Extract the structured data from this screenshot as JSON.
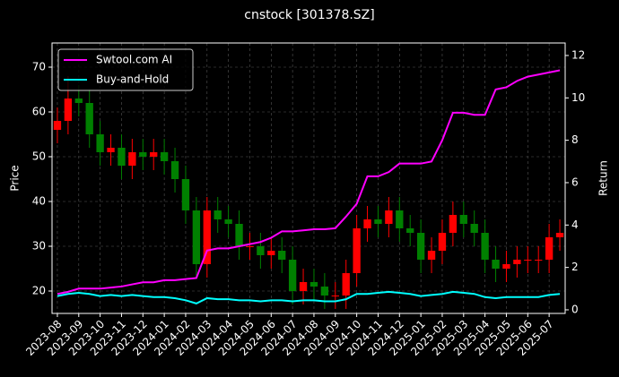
{
  "chart_data": {
    "type": "candlestick",
    "title": "cnstock [301378.SZ]",
    "ylabel": "Price",
    "y2label": "Return",
    "categories": [
      "2023-08",
      null,
      "2023-09",
      null,
      "2023-10",
      null,
      "2023-11",
      null,
      "2023-12",
      null,
      "2024-01",
      null,
      "2024-02",
      null,
      "2024-03",
      null,
      "2024-04",
      null,
      "2024-05",
      null,
      "2024-06",
      null,
      "2024-07",
      null,
      "2024-08",
      null,
      "2024-09",
      null,
      "2024-10",
      null,
      "2024-11",
      null,
      "2024-12",
      null,
      "2025-01",
      null,
      "2025-02",
      null,
      "2025-03",
      null,
      "2025-04",
      null,
      "2025-05",
      null,
      "2025-06",
      null,
      "2025-07",
      null
    ],
    "open": [
      56,
      58,
      63,
      62,
      55,
      51,
      52,
      48,
      51,
      50,
      51,
      49,
      45,
      38,
      26,
      38,
      36,
      35,
      30,
      30,
      28,
      29,
      27,
      20,
      22,
      21,
      19,
      19,
      24,
      34,
      36,
      35,
      38,
      34,
      33,
      27,
      29,
      33,
      37,
      35,
      33,
      27,
      25,
      26,
      27,
      27,
      27,
      32
    ],
    "high": [
      61,
      68,
      66,
      65,
      58,
      55,
      55,
      54,
      54,
      54,
      54,
      52,
      48,
      41,
      41,
      41,
      39,
      38,
      33,
      33,
      32,
      32,
      30,
      25,
      25,
      24,
      22,
      27,
      37,
      39,
      39,
      41,
      41,
      37,
      36,
      32,
      36,
      40,
      40,
      38,
      36,
      30,
      29,
      30,
      30,
      30,
      35,
      36
    ],
    "low": [
      53,
      55,
      59,
      52,
      48,
      48,
      45,
      45,
      47,
      47,
      46,
      42,
      35,
      23,
      23,
      33,
      32,
      27,
      27,
      25,
      25,
      24,
      17,
      17,
      18,
      16,
      16,
      16,
      21,
      31,
      32,
      32,
      31,
      30,
      24,
      24,
      26,
      30,
      32,
      30,
      24,
      22,
      22,
      23,
      24,
      24,
      24,
      29
    ],
    "close": [
      58,
      63,
      62,
      55,
      51,
      52,
      48,
      51,
      50,
      51,
      49,
      45,
      38,
      26,
      38,
      36,
      35,
      30,
      30,
      28,
      29,
      27,
      20,
      22,
      21,
      19,
      19,
      24,
      34,
      36,
      35,
      38,
      34,
      33,
      27,
      29,
      33,
      37,
      35,
      33,
      27,
      25,
      26,
      27,
      27,
      27,
      32,
      33
    ],
    "up_color": "#ff0000",
    "down_color": "#008000",
    "series": [
      {
        "name": "Swtool.com AI",
        "color": "#ff00ff",
        "axis": "y2",
        "values": [
          0.75,
          0.85,
          1.0,
          1.0,
          1.0,
          1.05,
          1.1,
          1.2,
          1.3,
          1.3,
          1.4,
          1.4,
          1.45,
          1.5,
          2.8,
          2.9,
          2.9,
          3.0,
          3.1,
          3.2,
          3.4,
          3.7,
          3.7,
          3.75,
          3.8,
          3.8,
          3.85,
          4.4,
          5.0,
          6.3,
          6.3,
          6.5,
          6.9,
          6.9,
          6.9,
          7.0,
          8.0,
          9.3,
          9.3,
          9.2,
          9.2,
          10.4,
          10.5,
          10.8,
          11.0,
          11.1,
          11.2,
          11.3
        ]
      },
      {
        "name": "Buy-and-Hold",
        "color": "#00ffff",
        "axis": "y2",
        "values": [
          0.65,
          0.75,
          0.8,
          0.75,
          0.65,
          0.7,
          0.65,
          0.7,
          0.65,
          0.6,
          0.6,
          0.55,
          0.45,
          0.3,
          0.55,
          0.5,
          0.5,
          0.45,
          0.45,
          0.4,
          0.45,
          0.45,
          0.4,
          0.45,
          0.45,
          0.4,
          0.4,
          0.5,
          0.75,
          0.75,
          0.8,
          0.85,
          0.8,
          0.75,
          0.65,
          0.7,
          0.75,
          0.85,
          0.8,
          0.75,
          0.6,
          0.55,
          0.6,
          0.6,
          0.6,
          0.6,
          0.7,
          0.75
        ]
      }
    ],
    "ylim": [
      15,
      75.4
    ],
    "yticks": [
      20,
      30,
      40,
      50,
      60,
      70
    ],
    "y2lim": [
      -0.17,
      12.59
    ],
    "y2ticks": [
      0,
      2,
      4,
      6,
      8,
      10,
      12
    ],
    "grid": true,
    "legend": "upper-left"
  }
}
